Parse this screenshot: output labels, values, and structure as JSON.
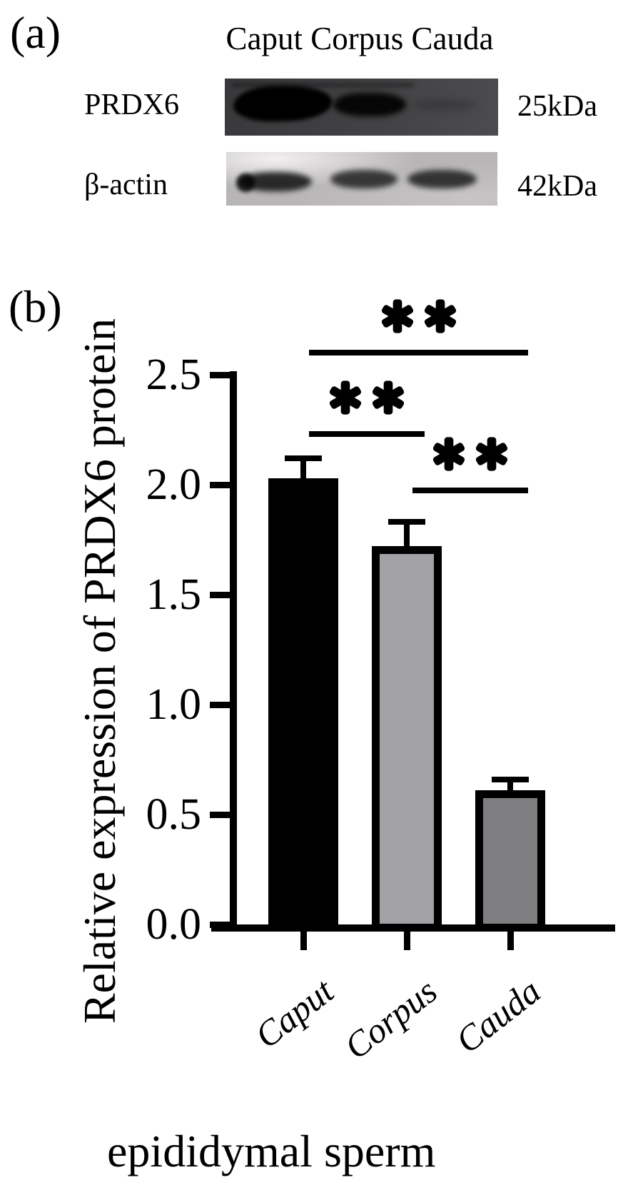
{
  "figure": {
    "panel_a": {
      "label": "(a)",
      "lane_header": "Caput Corpus Cauda",
      "rows": [
        {
          "protein": "PRDX6",
          "weight": "25kDa"
        },
        {
          "protein": "β-actin",
          "weight": "42kDa"
        }
      ]
    },
    "panel_b": {
      "label": "(b)"
    }
  },
  "chart_data": {
    "type": "bar",
    "title": "",
    "categories": [
      "Caput",
      "Corpus",
      "Cauda"
    ],
    "values": [
      2.03,
      1.72,
      0.61
    ],
    "errors": [
      0.09,
      0.11,
      0.05
    ],
    "bar_colors": [
      "#000000",
      "#a2a1a6",
      "#7e7e81"
    ],
    "bar_border_color": "#000000",
    "ylabel": "Relative expression of PRDX6 protein",
    "xlabel": "epididymal sperm",
    "ylim": [
      0,
      2.5
    ],
    "yticks": [
      "0.0",
      "0.5",
      "1.0",
      "1.5",
      "2.0",
      "2.5"
    ],
    "grid": false,
    "legend": "none",
    "significance": [
      {
        "between": [
          "Caput",
          "Cauda"
        ],
        "label": "**"
      },
      {
        "between": [
          "Caput",
          "Corpus"
        ],
        "label": "**"
      },
      {
        "between": [
          "Corpus",
          "Cauda"
        ],
        "label": "**"
      }
    ]
  }
}
